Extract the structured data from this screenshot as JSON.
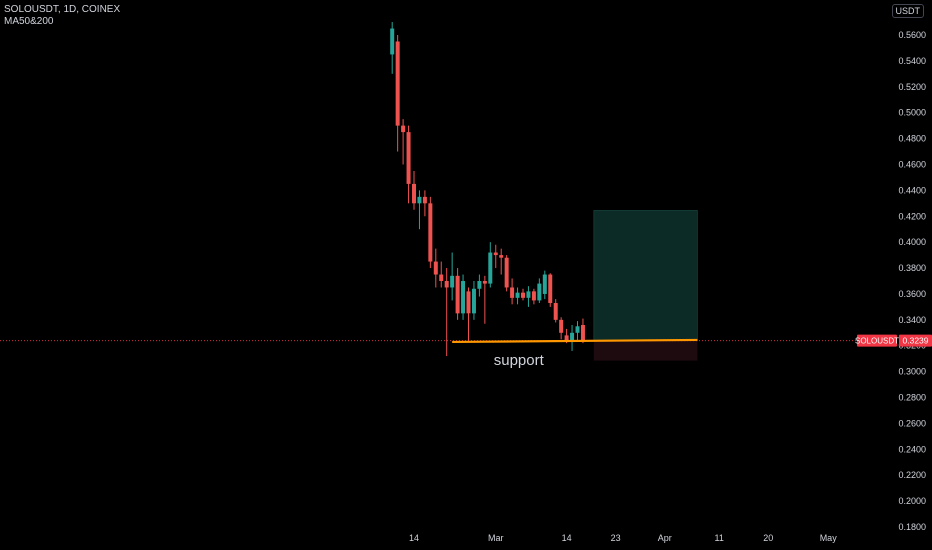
{
  "legend": {
    "symbol_line": "SOLOUSDT, 1D, COINEX",
    "indicator": "MA50&200"
  },
  "price_scale_unit": "USDT",
  "price_badge": {
    "symbol": "SOLOUSDT",
    "price": "0.3239",
    "color": "#f23645"
  },
  "colors": {
    "up": "#26a69a",
    "down": "#ef5350",
    "support_line": "#ff9800",
    "target_zone": "#0c2a26",
    "stop_zone": "#1e0b10",
    "price_line": "#f23645",
    "axis_text": "#d1d4dc",
    "background": "#000000"
  },
  "chart_data": {
    "type": "candlestick",
    "title": "SOLOUSDT, 1D, COINEX",
    "ylim": [
      0.175,
      0.575
    ],
    "y_ticks": [
      "0.5600",
      "0.5400",
      "0.5200",
      "0.5000",
      "0.4800",
      "0.4600",
      "0.4400",
      "0.4200",
      "0.4000",
      "0.3800",
      "0.3600",
      "0.3400",
      "0.3200",
      "0.3000",
      "0.2800",
      "0.2600",
      "0.2400",
      "0.2200",
      "0.2000",
      "0.1800"
    ],
    "x_ticks": [
      "14",
      "Mar",
      "14",
      "23",
      "Apr",
      "11",
      "20",
      "May"
    ],
    "x_tick_dates": [
      "2022-02-14",
      "2022-03-01",
      "2022-03-14",
      "2022-03-23",
      "2022-04-01",
      "2022-04-11",
      "2022-04-20",
      "2022-05-01"
    ],
    "candles": [
      {
        "date": "2022-02-10",
        "o": 0.545,
        "h": 0.57,
        "l": 0.53,
        "c": 0.565
      },
      {
        "date": "2022-02-11",
        "o": 0.555,
        "h": 0.56,
        "l": 0.47,
        "c": 0.49
      },
      {
        "date": "2022-02-12",
        "o": 0.49,
        "h": 0.495,
        "l": 0.46,
        "c": 0.485
      },
      {
        "date": "2022-02-13",
        "o": 0.485,
        "h": 0.49,
        "l": 0.43,
        "c": 0.445
      },
      {
        "date": "2022-02-14",
        "o": 0.445,
        "h": 0.455,
        "l": 0.425,
        "c": 0.43
      },
      {
        "date": "2022-02-15",
        "o": 0.43,
        "h": 0.44,
        "l": 0.41,
        "c": 0.435
      },
      {
        "date": "2022-02-16",
        "o": 0.435,
        "h": 0.44,
        "l": 0.42,
        "c": 0.43
      },
      {
        "date": "2022-02-17",
        "o": 0.43,
        "h": 0.435,
        "l": 0.38,
        "c": 0.385
      },
      {
        "date": "2022-02-18",
        "o": 0.385,
        "h": 0.395,
        "l": 0.365,
        "c": 0.375
      },
      {
        "date": "2022-02-19",
        "o": 0.375,
        "h": 0.385,
        "l": 0.365,
        "c": 0.37
      },
      {
        "date": "2022-02-20",
        "o": 0.37,
        "h": 0.38,
        "l": 0.312,
        "c": 0.365
      },
      {
        "date": "2022-02-21",
        "o": 0.365,
        "h": 0.392,
        "l": 0.355,
        "c": 0.374
      },
      {
        "date": "2022-02-22",
        "o": 0.374,
        "h": 0.38,
        "l": 0.34,
        "c": 0.345
      },
      {
        "date": "2022-02-23",
        "o": 0.345,
        "h": 0.375,
        "l": 0.34,
        "c": 0.37
      },
      {
        "date": "2022-02-24",
        "o": 0.362,
        "h": 0.365,
        "l": 0.324,
        "c": 0.345
      },
      {
        "date": "2022-02-25",
        "o": 0.345,
        "h": 0.37,
        "l": 0.34,
        "c": 0.364
      },
      {
        "date": "2022-02-26",
        "o": 0.364,
        "h": 0.375,
        "l": 0.358,
        "c": 0.37
      },
      {
        "date": "2022-02-27",
        "o": 0.37,
        "h": 0.374,
        "l": 0.337,
        "c": 0.368
      },
      {
        "date": "2022-02-28",
        "o": 0.368,
        "h": 0.4,
        "l": 0.365,
        "c": 0.392
      },
      {
        "date": "2022-03-01",
        "o": 0.392,
        "h": 0.398,
        "l": 0.38,
        "c": 0.39
      },
      {
        "date": "2022-03-02",
        "o": 0.39,
        "h": 0.395,
        "l": 0.375,
        "c": 0.388
      },
      {
        "date": "2022-03-03",
        "o": 0.388,
        "h": 0.39,
        "l": 0.362,
        "c": 0.365
      },
      {
        "date": "2022-03-04",
        "o": 0.365,
        "h": 0.372,
        "l": 0.352,
        "c": 0.357
      },
      {
        "date": "2022-03-05",
        "o": 0.357,
        "h": 0.365,
        "l": 0.352,
        "c": 0.361
      },
      {
        "date": "2022-03-06",
        "o": 0.361,
        "h": 0.364,
        "l": 0.355,
        "c": 0.357
      },
      {
        "date": "2022-03-07",
        "o": 0.357,
        "h": 0.366,
        "l": 0.35,
        "c": 0.362
      },
      {
        "date": "2022-03-08",
        "o": 0.362,
        "h": 0.364,
        "l": 0.352,
        "c": 0.355
      },
      {
        "date": "2022-03-09",
        "o": 0.355,
        "h": 0.372,
        "l": 0.353,
        "c": 0.368
      },
      {
        "date": "2022-03-10",
        "o": 0.36,
        "h": 0.378,
        "l": 0.356,
        "c": 0.375
      },
      {
        "date": "2022-03-11",
        "o": 0.375,
        "h": 0.376,
        "l": 0.35,
        "c": 0.353
      },
      {
        "date": "2022-03-12",
        "o": 0.353,
        "h": 0.356,
        "l": 0.338,
        "c": 0.34
      },
      {
        "date": "2022-03-13",
        "o": 0.34,
        "h": 0.342,
        "l": 0.325,
        "c": 0.33
      },
      {
        "date": "2022-03-14",
        "o": 0.328,
        "h": 0.333,
        "l": 0.322,
        "c": 0.324
      },
      {
        "date": "2022-03-15",
        "o": 0.324,
        "h": 0.336,
        "l": 0.316,
        "c": 0.33
      },
      {
        "date": "2022-03-16",
        "o": 0.33,
        "h": 0.339,
        "l": 0.324,
        "c": 0.335
      },
      {
        "date": "2022-03-17",
        "o": 0.336,
        "h": 0.341,
        "l": 0.322,
        "c": 0.3239
      }
    ],
    "annotations": [
      {
        "type": "horizontal-line",
        "label": "support",
        "from": "2022-02-21",
        "to": "2022-04-07",
        "value": 0.3237
      },
      {
        "type": "position-target-zone",
        "from": "2022-03-19",
        "to": "2022-04-07",
        "top": 0.4245,
        "bottom": 0.3237
      },
      {
        "type": "position-stop-zone",
        "from": "2022-03-19",
        "to": "2022-04-07",
        "top": 0.3237,
        "bottom": 0.3085
      }
    ],
    "last_price": 0.3239
  }
}
